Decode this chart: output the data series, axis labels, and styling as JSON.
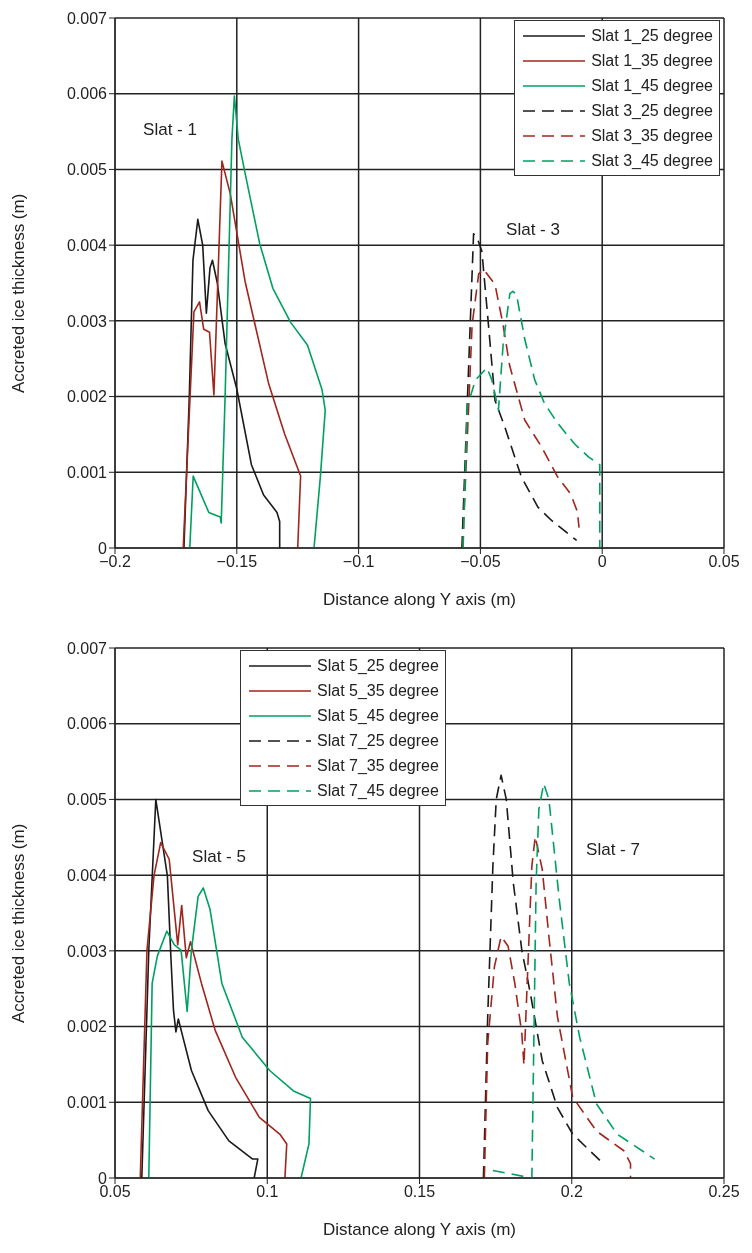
{
  "chart_data": [
    {
      "type": "line",
      "xlabel": "Distance along Y axis (m)",
      "ylabel": "Accreted ice thickness (m)",
      "xlim": [
        -0.2,
        0.05
      ],
      "xticks": [
        {
          "value": -0.2,
          "label": "−0.2"
        },
        {
          "value": -0.15,
          "label": "−0.15"
        },
        {
          "value": -0.1,
          "label": "−0.1"
        },
        {
          "value": -0.05,
          "label": "−0.05"
        },
        0,
        0.05
      ],
      "ylim": [
        0,
        0.007
      ],
      "yticks": [
        0,
        0.001,
        0.002,
        0.003,
        0.004,
        0.005,
        0.006,
        0.007
      ],
      "grid": true,
      "legend": "top right",
      "marker": "none",
      "annotations": [
        "Slat - 1",
        "Slat - 3"
      ],
      "series": [
        {
          "name": "Slat 1_25 degree",
          "color": "#1a1a1a",
          "line_style": "solid",
          "x": [
            -0.1717,
            -0.1695,
            -0.168,
            -0.166,
            -0.164,
            -0.1625,
            -0.161,
            -0.16,
            -0.158,
            -0.1548,
            -0.15,
            -0.144,
            -0.139,
            -0.1335,
            -0.1324,
            -0.1324
          ],
          "values": [
            0,
            0.002,
            0.0038,
            0.00434,
            0.004,
            0.0031,
            0.0037,
            0.0038,
            0.0035,
            0.0027,
            0.0021,
            0.0011,
            0.0007,
            0.00047,
            0.00035,
            0
          ]
        },
        {
          "name": "Slat 1_35 degree",
          "color": "#a0261d",
          "line_style": "solid",
          "x": [
            -0.172,
            -0.1676,
            -0.1653,
            -0.1636,
            -0.1612,
            -0.1594,
            -0.1561,
            -0.1527,
            -0.1466,
            -0.137,
            -0.1304,
            -0.1238,
            -0.125
          ],
          "values": [
            0,
            0.00312,
            0.00325,
            0.00289,
            0.00285,
            0.00202,
            0.00511,
            0.00468,
            0.00352,
            0.00218,
            0.00151,
            0.00095,
            0
          ]
        },
        {
          "name": "Slat 1_45 degree",
          "color": "#00a060",
          "line_style": "solid",
          "x": [
            -0.1693,
            -0.1679,
            -0.1615,
            -0.1568,
            -0.1564,
            -0.1548,
            -0.152,
            -0.151,
            -0.1494,
            -0.1466,
            -0.1406,
            -0.1352,
            -0.1279,
            -0.121,
            -0.115,
            -0.1137,
            -0.1157,
            -0.1183
          ],
          "values": [
            0,
            0.00095,
            0.00047,
            0.00041,
            0.00033,
            0.002,
            0.0054,
            0.00597,
            0.0054,
            0.00495,
            0.00402,
            0.00343,
            0.00298,
            0.00268,
            0.00209,
            0.00182,
            0.00094,
            0
          ]
        },
        {
          "name": "Slat 3_25 degree",
          "color": "#1a1a1a",
          "line_style": "dashed",
          "x": [
            -0.0576,
            -0.0528,
            -0.0514,
            -0.0494,
            -0.0467,
            -0.044,
            -0.04,
            -0.0332,
            -0.0264,
            -0.021,
            -0.0105
          ],
          "values": [
            0,
            0.00415,
            0.0041,
            0.00392,
            0.00295,
            0.00195,
            0.0016,
            0.00094,
            0.00054,
            0.00037,
            0.0001
          ]
        },
        {
          "name": "Slat 3_35 degree",
          "color": "#a0261d",
          "line_style": "dashed",
          "x": [
            -0.0573,
            -0.0534,
            -0.0507,
            -0.0487,
            -0.044,
            -0.0407,
            -0.038,
            -0.0318,
            -0.025,
            -0.0183,
            -0.0129,
            -0.0102,
            -0.0095
          ],
          "values": [
            0,
            0.00295,
            0.00362,
            0.00368,
            0.00348,
            0.00295,
            0.00241,
            0.00169,
            0.00134,
            0.00094,
            0.00071,
            0.00048,
            0.00027
          ]
        },
        {
          "name": "Slat 3_45 degree",
          "color": "#00a060",
          "line_style": "dashed",
          "x": [
            -0.0571,
            -0.0554,
            -0.052,
            -0.0473,
            -0.0453,
            -0.0426,
            -0.0406,
            -0.0379,
            -0.0367,
            -0.0352,
            -0.0318,
            -0.0277,
            -0.0237,
            -0.0183,
            -0.0115,
            -0.0055,
            -0.001,
            -0.001
          ],
          "values": [
            0,
            0.00187,
            0.00222,
            0.00238,
            0.00222,
            0.00182,
            0.00272,
            0.00336,
            0.00339,
            0.00335,
            0.00276,
            0.00222,
            0.00191,
            0.00165,
            0.00138,
            0.0012,
            0.0011,
            0
          ]
        }
      ]
    },
    {
      "type": "line",
      "xlabel": "Distance along Y axis (m)",
      "ylabel": "Accreted ice thickness (m)",
      "xlim": [
        0.05,
        0.25
      ],
      "xticks": [
        0.05,
        0.1,
        0.15,
        0.2,
        0.25
      ],
      "ylim": [
        0,
        0.007
      ],
      "yticks": [
        0,
        0.001,
        0.002,
        0.003,
        0.004,
        0.005,
        0.006,
        0.007
      ],
      "grid": true,
      "legend": "top",
      "marker": "none",
      "annotations": [
        "Slat - 5",
        "Slat - 7"
      ],
      "series": [
        {
          "name": "Slat 5_25 degree",
          "color": "#1a1a1a",
          "line_style": "solid",
          "x": [
            0.0588,
            0.0611,
            0.0634,
            0.0672,
            0.0684,
            0.0692,
            0.07,
            0.0708,
            0.0723,
            0.0751,
            0.0806,
            0.0874,
            0.0952,
            0.0969,
            0.0957
          ],
          "values": [
            0,
            0.00301,
            0.005,
            0.00399,
            0.00288,
            0.00222,
            0.00193,
            0.0021,
            0.00186,
            0.00142,
            0.00089,
            0.00049,
            0.00025,
            0.00025,
            0
          ]
        },
        {
          "name": "Slat 5_35 degree",
          "color": "#a0261d",
          "line_style": "solid",
          "x": [
            0.0583,
            0.0605,
            0.0628,
            0.065,
            0.0678,
            0.07,
            0.0706,
            0.0719,
            0.0734,
            0.0748,
            0.0784,
            0.0829,
            0.0896,
            0.0974,
            0.1041,
            0.1064,
            0.1058
          ],
          "values": [
            0,
            0.00301,
            0.00399,
            0.00443,
            0.00421,
            0.00332,
            0.00308,
            0.0036,
            0.00291,
            0.00312,
            0.00257,
            0.00195,
            0.00133,
            0.0008,
            0.00058,
            0.00045,
            0
          ]
        },
        {
          "name": "Slat 5_45 degree",
          "color": "#00a060",
          "line_style": "solid",
          "x": [
            0.0611,
            0.0622,
            0.0639,
            0.067,
            0.0695,
            0.0717,
            0.0737,
            0.0751,
            0.0773,
            0.079,
            0.0812,
            0.0851,
            0.0918,
            0.1008,
            0.1086,
            0.1142,
            0.1137,
            0.1111
          ],
          "values": [
            0,
            0.00257,
            0.00293,
            0.00326,
            0.00308,
            0.00301,
            0.0022,
            0.00301,
            0.00372,
            0.00383,
            0.00355,
            0.00257,
            0.00186,
            0.00142,
            0.00115,
            0.00105,
            0.00045,
            0
          ]
        },
        {
          "name": "Slat 7_25 degree",
          "color": "#1a1a1a",
          "line_style": "dashed",
          "x": [
            0.171,
            0.1724,
            0.1741,
            0.1752,
            0.1768,
            0.1785,
            0.1808,
            0.1836,
            0.1864,
            0.1903,
            0.1953,
            0.2003,
            0.2093
          ],
          "values": [
            0,
            0.00213,
            0.00412,
            0.005,
            0.00532,
            0.005,
            0.0039,
            0.00301,
            0.00244,
            0.00155,
            0.00093,
            0.00058,
            0.00023
          ]
        },
        {
          "name": "Slat 7_35 degree",
          "color": "#a0261d",
          "line_style": "dashed",
          "x": [
            0.1713,
            0.1724,
            0.1746,
            0.1768,
            0.1791,
            0.1813,
            0.1836,
            0.1843,
            0.1858,
            0.1869,
            0.188,
            0.1903,
            0.1925,
            0.1953,
            0.2003,
            0.2081,
            0.2171,
            0.2193,
            0.2193
          ],
          "values": [
            0,
            0.00178,
            0.00279,
            0.00319,
            0.00306,
            0.00257,
            0.00191,
            0.00149,
            0.00301,
            0.00412,
            0.00451,
            0.00408,
            0.00319,
            0.00213,
            0.00107,
            0.00062,
            0.00036,
            0.00019,
            0
          ]
        },
        {
          "name": "Slat 7_45 degree",
          "color": "#00a060",
          "line_style": "dashed",
          "x": [
            0.1741,
            0.1869,
            0.1883,
            0.1892,
            0.1908,
            0.1925,
            0.1959,
            0.1992,
            0.2026,
            0.2081,
            0.2149,
            0.2272
          ],
          "values": [
            0.0001,
            0,
            0.0039,
            0.00487,
            0.00521,
            0.005,
            0.00368,
            0.00257,
            0.00186,
            0.00098,
            0.00058,
            0.00025
          ]
        }
      ]
    }
  ]
}
